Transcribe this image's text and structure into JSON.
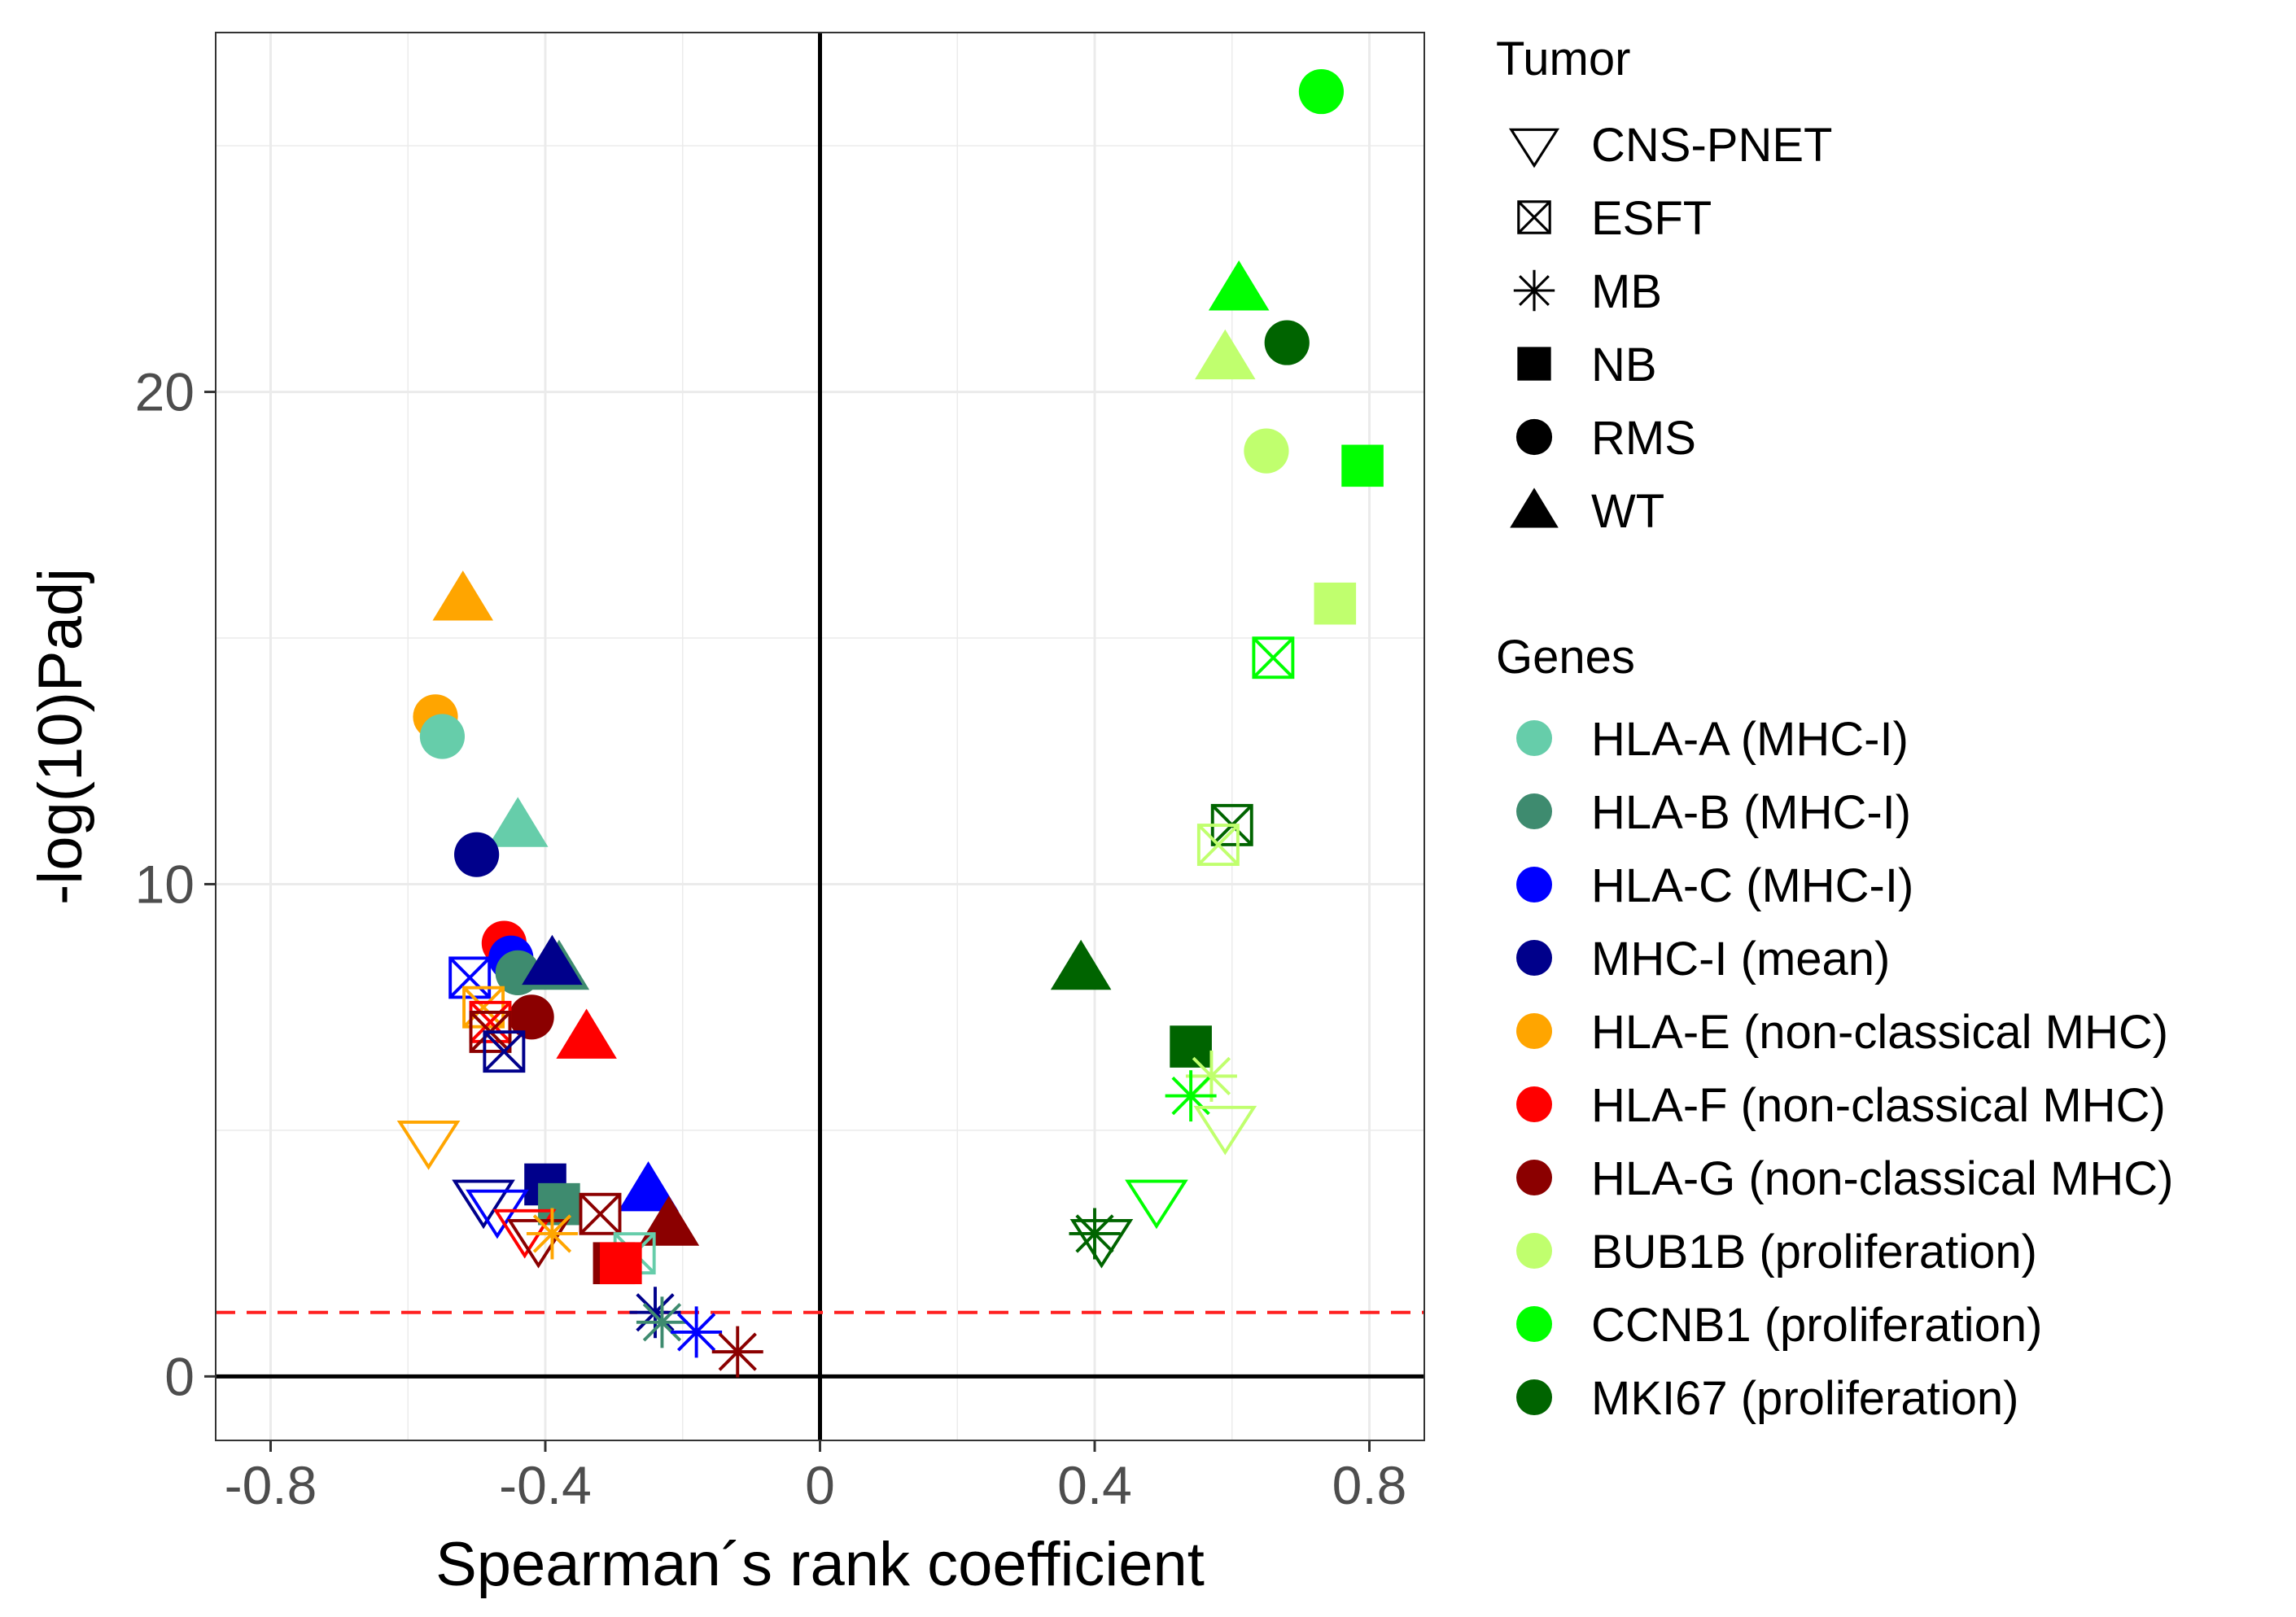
{
  "chart_data": {
    "type": "scatter",
    "xlabel": "Spearman´s rank coefficient",
    "ylabel": "-log(10)Padj",
    "xlim": [
      -0.88,
      0.88
    ],
    "ylim": [
      -1.3,
      27.3
    ],
    "x_ticks": [
      -0.8,
      -0.4,
      0,
      0.4,
      0.8
    ],
    "x_tick_labels": [
      "-0.8",
      "-0.4",
      "0",
      "0.4",
      "0.8"
    ],
    "y_ticks": [
      0,
      10,
      20
    ],
    "y_tick_labels": [
      "0",
      "10",
      "20"
    ],
    "grid": true,
    "threshold": 1.3,
    "threshold_color": "#ff2020",
    "legend_tumor": {
      "title": "Tumor",
      "items": [
        {
          "label": "CNS-PNET",
          "shape": "triangle-down-open"
        },
        {
          "label": "ESFT",
          "shape": "square-x"
        },
        {
          "label": "MB",
          "shape": "asterisk"
        },
        {
          "label": "NB",
          "shape": "square"
        },
        {
          "label": "RMS",
          "shape": "circle"
        },
        {
          "label": "WT",
          "shape": "triangle"
        }
      ]
    },
    "legend_genes": {
      "title": "Genes",
      "items": [
        {
          "label": "HLA-A (MHC-I)",
          "color": "#66cdaa"
        },
        {
          "label": "HLA-B (MHC-I)",
          "color": "#3e8b6f"
        },
        {
          "label": "HLA-C (MHC-I)",
          "color": "#0000ff"
        },
        {
          "label": "MHC-I (mean)",
          "color": "#00008b"
        },
        {
          "label": "HLA-E (non-classical MHC)",
          "color": "#ffa500"
        },
        {
          "label": "HLA-F (non-classical MHC)",
          "color": "#ff0000"
        },
        {
          "label": "HLA-G (non-classical MHC)",
          "color": "#8b0000"
        },
        {
          "label": "BUB1B (proliferation)",
          "color": "#c0ff6e"
        },
        {
          "label": "CCNB1 (proliferation)",
          "color": "#00ff00"
        },
        {
          "label": "MKI67 (proliferation)",
          "color": "#006400"
        }
      ]
    },
    "points": [
      {
        "gene": 8,
        "tumor": "RMS",
        "x": 0.73,
        "y": 26.1
      },
      {
        "gene": 8,
        "tumor": "WT",
        "x": 0.61,
        "y": 22.1
      },
      {
        "gene": 9,
        "tumor": "RMS",
        "x": 0.68,
        "y": 21.0
      },
      {
        "gene": 7,
        "tumor": "WT",
        "x": 0.59,
        "y": 20.7
      },
      {
        "gene": 7,
        "tumor": "RMS",
        "x": 0.65,
        "y": 18.8
      },
      {
        "gene": 8,
        "tumor": "NB",
        "x": 0.79,
        "y": 18.5
      },
      {
        "gene": 7,
        "tumor": "NB",
        "x": 0.75,
        "y": 15.7
      },
      {
        "gene": 8,
        "tumor": "ESFT",
        "x": 0.66,
        "y": 14.6
      },
      {
        "gene": 9,
        "tumor": "ESFT",
        "x": 0.6,
        "y": 11.2
      },
      {
        "gene": 7,
        "tumor": "ESFT",
        "x": 0.58,
        "y": 10.8
      },
      {
        "gene": 9,
        "tumor": "WT",
        "x": 0.38,
        "y": 8.3
      },
      {
        "gene": 9,
        "tumor": "NB",
        "x": 0.54,
        "y": 6.7
      },
      {
        "gene": 7,
        "tumor": "MB",
        "x": 0.57,
        "y": 6.1
      },
      {
        "gene": 8,
        "tumor": "MB",
        "x": 0.54,
        "y": 5.7
      },
      {
        "gene": 7,
        "tumor": "CNS-PNET",
        "x": 0.59,
        "y": 5.1
      },
      {
        "gene": 8,
        "tumor": "CNS-PNET",
        "x": 0.49,
        "y": 3.6
      },
      {
        "gene": 9,
        "tumor": "MB",
        "x": 0.4,
        "y": 2.9
      },
      {
        "gene": 9,
        "tumor": "CNS-PNET",
        "x": 0.41,
        "y": 2.8
      },
      {
        "gene": 4,
        "tumor": "WT",
        "x": -0.52,
        "y": 15.8
      },
      {
        "gene": 4,
        "tumor": "RMS",
        "x": -0.56,
        "y": 13.4
      },
      {
        "gene": 0,
        "tumor": "RMS",
        "x": -0.55,
        "y": 13.0
      },
      {
        "gene": 0,
        "tumor": "WT",
        "x": -0.44,
        "y": 11.2
      },
      {
        "gene": 3,
        "tumor": "RMS",
        "x": -0.5,
        "y": 10.6
      },
      {
        "gene": 5,
        "tumor": "RMS",
        "x": -0.46,
        "y": 8.8
      },
      {
        "gene": 2,
        "tumor": "RMS",
        "x": -0.45,
        "y": 8.5
      },
      {
        "gene": 1,
        "tumor": "RMS",
        "x": -0.44,
        "y": 8.2
      },
      {
        "gene": 1,
        "tumor": "WT",
        "x": -0.38,
        "y": 8.3
      },
      {
        "gene": 3,
        "tumor": "WT",
        "x": -0.39,
        "y": 8.4
      },
      {
        "gene": 2,
        "tumor": "ESFT",
        "x": -0.51,
        "y": 8.1
      },
      {
        "gene": 4,
        "tumor": "ESFT",
        "x": -0.49,
        "y": 7.5
      },
      {
        "gene": 6,
        "tumor": "RMS",
        "x": -0.42,
        "y": 7.3
      },
      {
        "gene": 5,
        "tumor": "ESFT",
        "x": -0.48,
        "y": 7.2
      },
      {
        "gene": 6,
        "tumor": "ESFT",
        "x": -0.48,
        "y": 7.0
      },
      {
        "gene": 5,
        "tumor": "WT",
        "x": -0.34,
        "y": 6.9
      },
      {
        "gene": 3,
        "tumor": "ESFT",
        "x": -0.46,
        "y": 6.6
      },
      {
        "gene": 4,
        "tumor": "CNS-PNET",
        "x": -0.57,
        "y": 4.8
      },
      {
        "gene": 3,
        "tumor": "NB",
        "x": -0.4,
        "y": 3.9
      },
      {
        "gene": 2,
        "tumor": "WT",
        "x": -0.25,
        "y": 3.8
      },
      {
        "gene": 3,
        "tumor": "CNS-PNET",
        "x": -0.49,
        "y": 3.6
      },
      {
        "gene": 2,
        "tumor": "CNS-PNET",
        "x": -0.47,
        "y": 3.4
      },
      {
        "gene": 1,
        "tumor": "NB",
        "x": -0.38,
        "y": 3.5
      },
      {
        "gene": 6,
        "tumor": "ESFT",
        "x": -0.32,
        "y": 3.3
      },
      {
        "gene": 6,
        "tumor": "WT",
        "x": -0.22,
        "y": 3.1
      },
      {
        "gene": 5,
        "tumor": "CNS-PNET",
        "x": -0.43,
        "y": 3.0
      },
      {
        "gene": 6,
        "tumor": "CNS-PNET",
        "x": -0.41,
        "y": 2.8
      },
      {
        "gene": 4,
        "tumor": "MB",
        "x": -0.39,
        "y": 2.9
      },
      {
        "gene": 0,
        "tumor": "ESFT",
        "x": -0.27,
        "y": 2.5
      },
      {
        "gene": 6,
        "tumor": "NB",
        "x": -0.3,
        "y": 2.3
      },
      {
        "gene": 5,
        "tumor": "NB",
        "x": -0.29,
        "y": 2.3
      },
      {
        "gene": 3,
        "tumor": "MB",
        "x": -0.24,
        "y": 1.3
      },
      {
        "gene": 1,
        "tumor": "MB",
        "x": -0.23,
        "y": 1.1
      },
      {
        "gene": 2,
        "tumor": "MB",
        "x": -0.18,
        "y": 0.9
      },
      {
        "gene": 6,
        "tumor": "MB",
        "x": -0.12,
        "y": 0.5
      }
    ]
  }
}
